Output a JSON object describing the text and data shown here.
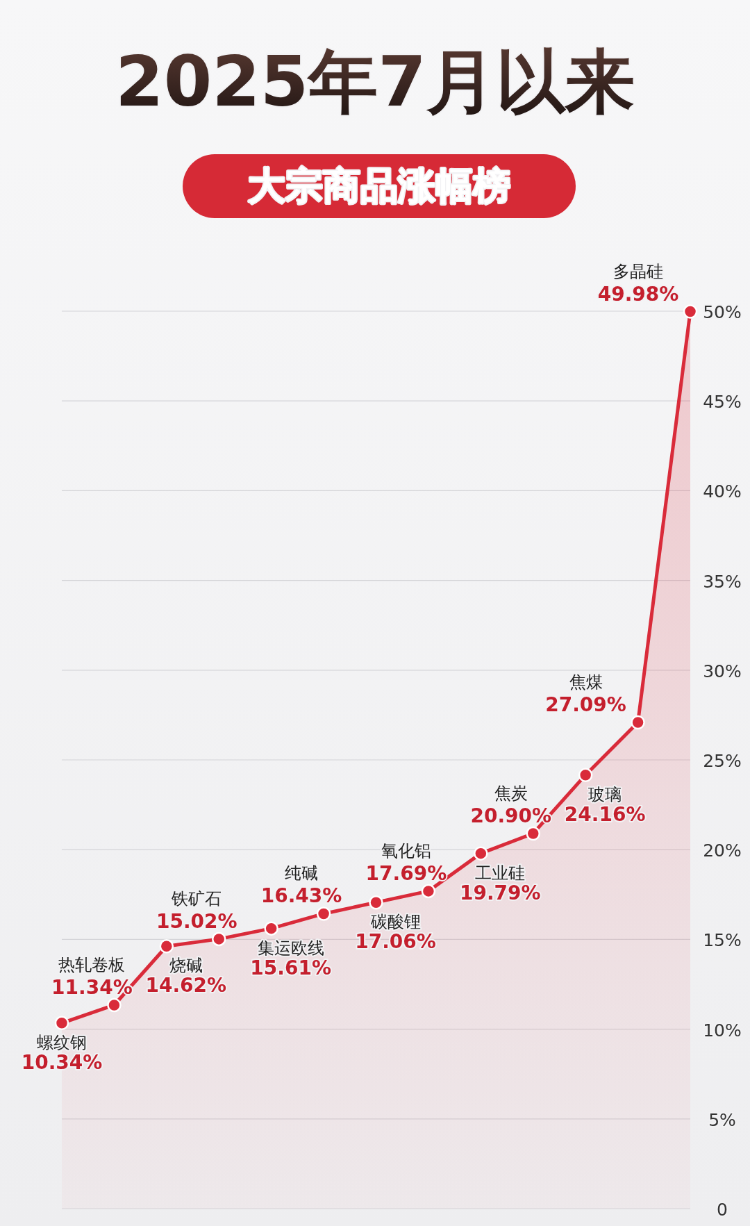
{
  "chart_data": {
    "type": "area",
    "title": "2025年7月以来",
    "subtitle": "大宗商品涨幅榜",
    "categories": [
      null,
      null,
      null,
      null,
      null,
      null,
      null,
      null,
      null,
      null,
      null,
      null,
      null
    ],
    "values": [
      10.34,
      11.34,
      14.62,
      15.02,
      15.61,
      16.43,
      17.06,
      17.69,
      19.79,
      20.9,
      24.16,
      27.09,
      49.98
    ],
    "value_labels": [
      "10.34%",
      "11.34%",
      "14.62%",
      "15.02%",
      "15.61%",
      "16.43%",
      "17.06%",
      "17.69%",
      "19.79%",
      "20.90%",
      "24.16%",
      "27.09%",
      "49.98%"
    ],
    "annotations": [
      "螺纹钢",
      "热轧卷板",
      "烧碱",
      "铁矿石",
      "集运欧线",
      "纯碱",
      "碳酸锂",
      "氧化铝",
      "工业硅",
      "焦炭",
      "玻璃",
      "焦煤",
      "多晶硅"
    ],
    "color": "#d92b3a",
    "ylim": [
      0,
      50
    ],
    "yticks": [
      {
        "value": 0,
        "label": "0"
      },
      {
        "value": 5,
        "label": "5%"
      },
      {
        "value": 10,
        "label": "10%"
      },
      {
        "value": 15,
        "label": "15%"
      },
      {
        "value": 20,
        "label": "20%"
      },
      {
        "value": 25,
        "label": "25%"
      },
      {
        "value": 30,
        "label": "30%"
      },
      {
        "value": 35,
        "label": "35%"
      },
      {
        "value": 40,
        "label": "40%"
      },
      {
        "value": 45,
        "label": "45%"
      },
      {
        "value": 50,
        "label": "50%"
      }
    ],
    "grid": "y",
    "marker": "circle"
  }
}
